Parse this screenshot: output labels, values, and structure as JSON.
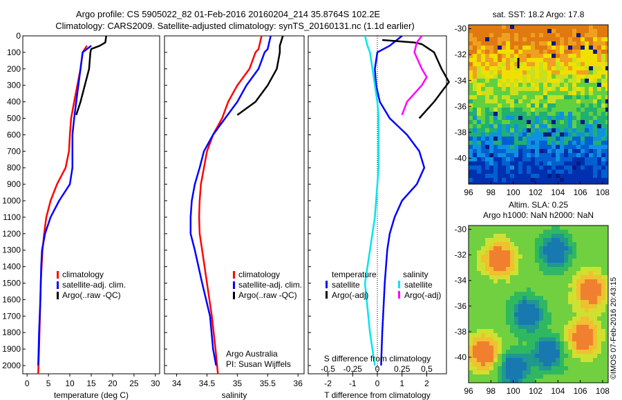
{
  "title_line1": "Argo profile: CS 5905022_82 01-Feb-2016 20160204_214 35.8764S 102.2E",
  "title_line2": "Climatology: CARS2009. Satellite-adjusted climatology: synTS_20160131.nc (1.1d earlier)",
  "watermark": "©IMOS 07-Feb-2016 20:43:15",
  "chart_data": [
    {
      "type": "line",
      "xlabel": "temperature (deg C)",
      "xlim": [
        -1,
        31
      ],
      "ylim": [
        0,
        2050
      ],
      "xticks": [
        0,
        5,
        10,
        15,
        20,
        25,
        30
      ],
      "yticks": [
        0,
        100,
        200,
        300,
        400,
        500,
        600,
        700,
        800,
        900,
        1000,
        1100,
        1200,
        1300,
        1400,
        1500,
        1600,
        1700,
        1800,
        1900,
        2000
      ],
      "legend": [
        "climatology",
        "satellite-adj. clim.",
        "Argo(..raw -QC)"
      ],
      "colors": [
        "#ff0000",
        "#0000ff",
        "#000000"
      ],
      "series": [
        {
          "name": "climatology",
          "points": [
            [
              14,
              60
            ],
            [
              13,
              100
            ],
            [
              12.5,
              200
            ],
            [
              11,
              400
            ],
            [
              10.3,
              500
            ],
            [
              10,
              600
            ],
            [
              9.8,
              700
            ],
            [
              9,
              800
            ],
            [
              7,
              900
            ],
            [
              5.5,
              1000
            ],
            [
              4.5,
              1100
            ],
            [
              4,
              1200
            ],
            [
              3.6,
              1300
            ],
            [
              3.4,
              1400
            ],
            [
              3.2,
              1500
            ],
            [
              3,
              1700
            ],
            [
              2.8,
              1900
            ],
            [
              2.6,
              2050
            ]
          ]
        },
        {
          "name": "satellite-adj. clim.",
          "points": [
            [
              15,
              60
            ],
            [
              13,
              100
            ],
            [
              12.5,
              200
            ],
            [
              11.5,
              400
            ],
            [
              11,
              500
            ],
            [
              10.6,
              600
            ],
            [
              10.6,
              800
            ],
            [
              10,
              900
            ],
            [
              7.5,
              1000
            ],
            [
              5.5,
              1100
            ],
            [
              4.2,
              1200
            ],
            [
              3.5,
              1300
            ],
            [
              3.3,
              1400
            ],
            [
              3.1,
              1600
            ],
            [
              2.8,
              1800
            ],
            [
              2.6,
              2000
            ]
          ]
        },
        {
          "name": "Argo(..raw -QC)",
          "points": [
            [
              18.5,
              0
            ],
            [
              18.3,
              40
            ],
            [
              17,
              60
            ],
            [
              15,
              80
            ],
            [
              14.8,
              100
            ],
            [
              14.5,
              200
            ],
            [
              14,
              250
            ],
            [
              13.5,
              300
            ],
            [
              13,
              350
            ],
            [
              12.5,
              400
            ],
            [
              11.5,
              480
            ]
          ]
        }
      ]
    },
    {
      "type": "line",
      "xlabel": "salinity",
      "xlim": [
        33.8,
        36.1
      ],
      "ylim": [
        0,
        2050
      ],
      "xticks": [
        34,
        34.5,
        35,
        35.5,
        36
      ],
      "legend": [
        "climatology",
        "satellite-adj. clim.",
        "Argo(..raw -QC)"
      ],
      "colors": [
        "#ff0000",
        "#0000ff",
        "#000000"
      ],
      "annotation": [
        "Argo Australia",
        "PI: Susan Wijffels"
      ],
      "series": [
        {
          "name": "climatology",
          "points": [
            [
              35.4,
              0
            ],
            [
              35.35,
              80
            ],
            [
              35.3,
              100
            ],
            [
              35.2,
              200
            ],
            [
              35.0,
              300
            ],
            [
              34.85,
              400
            ],
            [
              34.75,
              500
            ],
            [
              34.6,
              600
            ],
            [
              34.5,
              700
            ],
            [
              34.45,
              800
            ],
            [
              34.4,
              900
            ],
            [
              34.38,
              1000
            ],
            [
              34.37,
              1100
            ],
            [
              34.38,
              1200
            ],
            [
              34.42,
              1300
            ],
            [
              34.5,
              1500
            ],
            [
              34.58,
              1700
            ],
            [
              34.64,
              1900
            ],
            [
              34.68,
              2050
            ]
          ]
        },
        {
          "name": "satellite-adj. clim.",
          "points": [
            [
              35.55,
              0
            ],
            [
              35.5,
              80
            ],
            [
              35.45,
              100
            ],
            [
              35.35,
              200
            ],
            [
              35.15,
              300
            ],
            [
              35.0,
              400
            ],
            [
              34.8,
              500
            ],
            [
              34.6,
              600
            ],
            [
              34.45,
              700
            ],
            [
              34.38,
              800
            ],
            [
              34.3,
              900
            ],
            [
              34.25,
              1000
            ],
            [
              34.23,
              1100
            ],
            [
              34.23,
              1200
            ],
            [
              34.3,
              1300
            ],
            [
              34.42,
              1500
            ],
            [
              34.55,
              1700
            ],
            [
              34.6,
              1900
            ],
            [
              34.65,
              2000
            ]
          ]
        },
        {
          "name": "Argo(..raw -QC)",
          "points": [
            [
              35.75,
              0
            ],
            [
              35.7,
              60
            ],
            [
              35.7,
              100
            ],
            [
              35.65,
              200
            ],
            [
              35.5,
              300
            ],
            [
              35.3,
              400
            ],
            [
              35.0,
              480
            ]
          ]
        }
      ]
    },
    {
      "type": "line",
      "xlabel": "T difference from climatology",
      "xlabel_top": "S difference from climatology",
      "xlim": [
        -2.8,
        2.8
      ],
      "ylim": [
        0,
        2050
      ],
      "xticks": [
        -2,
        -1,
        0,
        1,
        2
      ],
      "xticks_top_labels": [
        "-0.5",
        "-0.25",
        "0",
        "0.25",
        "0.5"
      ],
      "legend_titles": [
        "temperature",
        "salinity"
      ],
      "legend": [
        "satellite",
        "Argo(-adj)",
        "satellite",
        "Argo(-adj)"
      ],
      "colors": [
        "#0000ff",
        "#000000",
        "#00e5ee",
        "#ff00ff"
      ],
      "series": [
        {
          "name": "satellite",
          "points": [
            [
              1.0,
              0
            ],
            [
              0.5,
              60
            ],
            [
              0,
              100
            ],
            [
              -0.1,
              200
            ],
            [
              -0.05,
              300
            ],
            [
              0.1,
              400
            ],
            [
              0.5,
              500
            ],
            [
              1.2,
              600
            ],
            [
              1.7,
              700
            ],
            [
              1.9,
              800
            ],
            [
              1.6,
              900
            ],
            [
              1.0,
              1000
            ],
            [
              0.7,
              1100
            ],
            [
              0.5,
              1200
            ],
            [
              0.4,
              1300
            ],
            [
              0.3,
              1500
            ],
            [
              0.2,
              1800
            ],
            [
              0.15,
              2000
            ]
          ]
        },
        {
          "name": "Argo(-adj)",
          "points": [
            [
              0.2,
              25
            ],
            [
              1.5,
              40
            ],
            [
              1.8,
              50
            ],
            [
              2.0,
              70
            ],
            [
              2.3,
              100
            ],
            [
              2.6,
              200
            ],
            [
              2.9,
              280
            ],
            [
              2.8,
              300
            ],
            [
              2.3,
              400
            ],
            [
              1.7,
              500
            ]
          ]
        },
        {
          "name": "satellite",
          "points": [
            [
              -0.5,
              0
            ],
            [
              -0.4,
              60
            ],
            [
              -0.3,
              100
            ],
            [
              -0.2,
              200
            ],
            [
              -0.1,
              300
            ],
            [
              0,
              400
            ],
            [
              0.05,
              500
            ],
            [
              0.05,
              800
            ],
            [
              -0.1,
              1100
            ],
            [
              -0.3,
              1300
            ],
            [
              -0.5,
              1500
            ],
            [
              -0.3,
              1800
            ],
            [
              -0.1,
              2000
            ]
          ]
        },
        {
          "name": "Argo(-adj)",
          "points": [
            [
              1.8,
              0
            ],
            [
              1.6,
              40
            ],
            [
              1.5,
              100
            ],
            [
              1.8,
              200
            ],
            [
              2.0,
              250
            ],
            [
              1.8,
              300
            ],
            [
              1.2,
              400
            ],
            [
              1.0,
              480
            ]
          ]
        }
      ]
    },
    {
      "type": "heatmap",
      "title": "sat. SST: 18.2 Argo: 17.8",
      "xlim": [
        96,
        108.5
      ],
      "ylim": [
        -42,
        -29.7
      ],
      "xticks": [
        96,
        98,
        100,
        102,
        104,
        106,
        108
      ],
      "yticks": [
        -30,
        -32,
        -34,
        -36,
        -38,
        -40
      ]
    },
    {
      "type": "heatmap",
      "title": "Altim. SLA: 0.25",
      "subtitle": "Argo h1000: NaN h2000: NaN",
      "xlim": [
        96,
        108.5
      ],
      "ylim": [
        -42,
        -29.7
      ],
      "xticks": [
        96,
        98,
        100,
        102,
        104,
        106,
        108
      ],
      "yticks": [
        -30,
        -32,
        -34,
        -36,
        -38,
        -40
      ]
    }
  ]
}
